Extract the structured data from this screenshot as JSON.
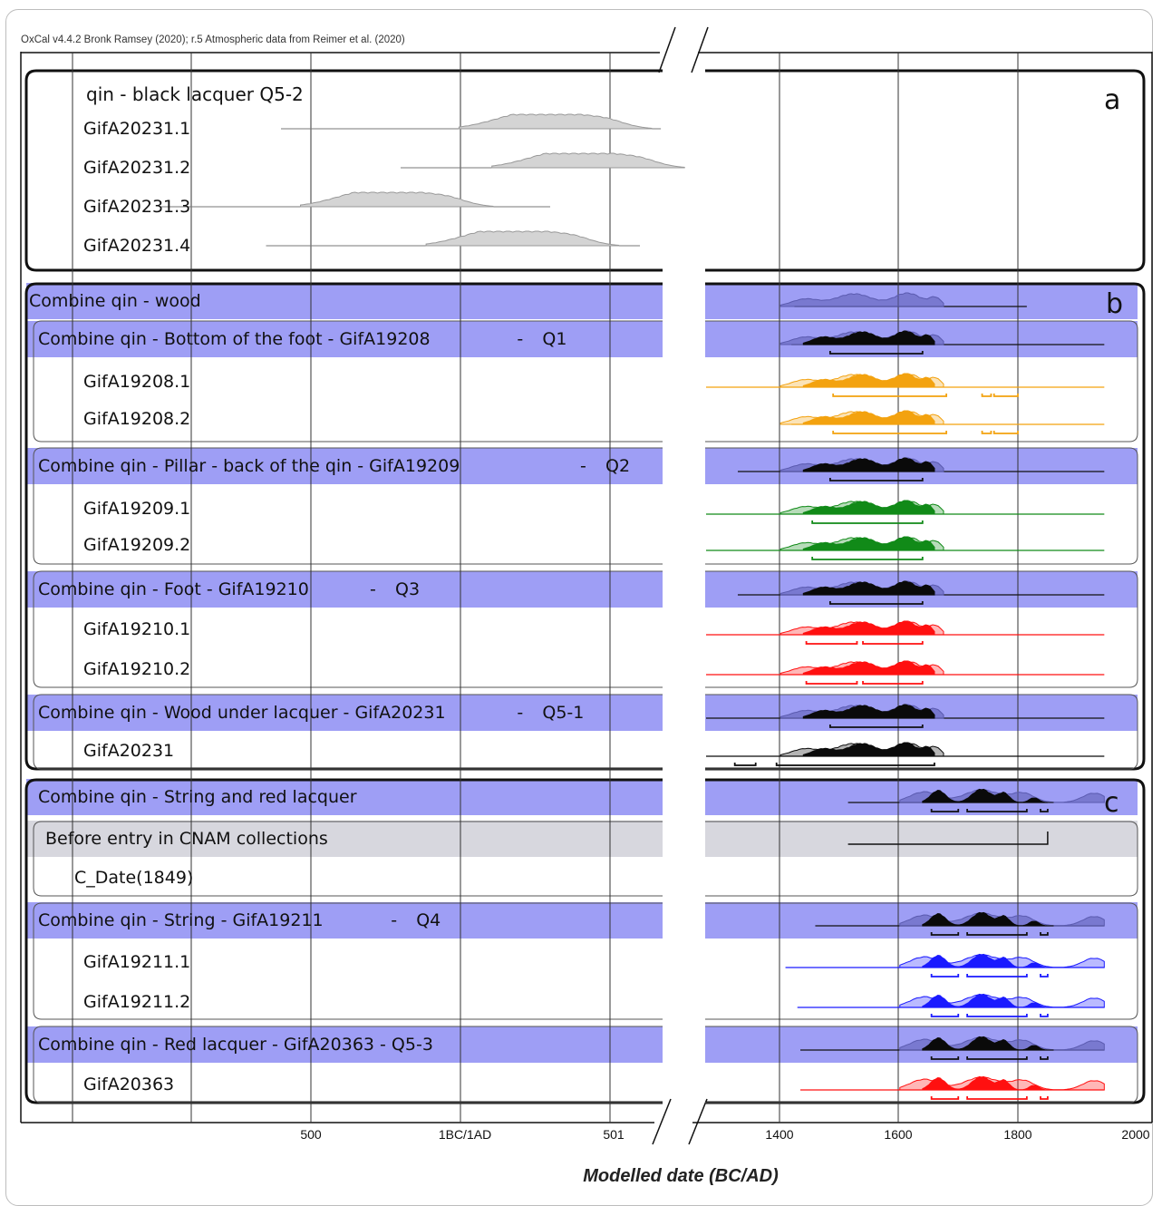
{
  "header": "OxCal v4.4.2 Bronk Ramsey (2020); r.5 Atmospheric data from Reimer et al. (2020)",
  "chart_data": {
    "type": "multiplot",
    "xlabel": "Modelled date (BC/AD)",
    "axis_break": true,
    "x_ticks_left": [
      "500",
      "1BC/1AD",
      "501"
    ],
    "x_ticks_right": [
      "1400",
      "1600",
      "1800",
      "2000"
    ],
    "colors": {
      "group": "#0a0a0a",
      "group_prior": "#5b5bb0",
      "q1": "#f3a20f",
      "q2": "#118a18",
      "q3": "#ff1010",
      "q4": "#1a1aff",
      "q5": "#0a0a0a",
      "q53": "#ff1010",
      "band_combine": "#9e9ef5",
      "band_before": "#d7d7de",
      "lacquer": "#999999"
    },
    "panels": [
      {
        "letter": "a",
        "rows": [
          {
            "label": "qin - black lacquer Q5-2",
            "kind": "title"
          },
          {
            "label": "GifA20231.1",
            "range": [
              -600,
              670
            ],
            "peak": [
              330,
              0.75
            ]
          },
          {
            "label": "GifA20231.2",
            "range": [
              -200,
              680
            ],
            "peak": [
              440,
              0.6
            ]
          },
          {
            "label": "GifA20231.3",
            "range": [
              -1000,
              300
            ],
            "peak": [
              -200,
              0.65
            ]
          },
          {
            "label": "GifA20231.4",
            "range": [
              -650,
              600
            ],
            "peak": [
              220,
              0.6
            ]
          }
        ]
      },
      {
        "letter": "b",
        "rows": [
          {
            "label": "Combine qin - wood",
            "kind": "combine",
            "range": [
              1425,
              1815
            ]
          },
          {
            "label": "Combine qin - Bottom of the foot - GifA19208",
            "code": "Q1",
            "kind": "combine",
            "range": [
              1420,
              1945
            ],
            "hpd": [
              [
                1485,
                1640
              ]
            ]
          },
          {
            "label": "GifA19208.1",
            "kind": "sample",
            "series": "Q1",
            "range": [
              1220,
              1945
            ],
            "hpd": [
              [
                1490,
                1680
              ],
              [
                1740,
                1755
              ],
              [
                1760,
                1800
              ]
            ]
          },
          {
            "label": "GifA19208.2",
            "kind": "sample",
            "series": "Q1",
            "range": [
              1420,
              1945
            ],
            "hpd": [
              [
                1490,
                1680
              ],
              [
                1740,
                1755
              ],
              [
                1760,
                1800
              ]
            ]
          },
          {
            "label": "Combine qin - Pillar - back of the qin - GifA19209",
            "code": "Q2",
            "kind": "combine",
            "range": [
              1330,
              1945
            ],
            "hpd": [
              [
                1485,
                1640
              ]
            ]
          },
          {
            "label": "GifA19209.1",
            "kind": "sample",
            "series": "Q2",
            "range": [
              1190,
              1945
            ],
            "hpd": [
              [
                1455,
                1640
              ]
            ]
          },
          {
            "label": "GifA19209.2",
            "kind": "sample",
            "series": "Q2",
            "range": [
              1210,
              1945
            ],
            "hpd": [
              [
                1455,
                1640
              ]
            ]
          },
          {
            "label": "Combine qin - Foot - GifA19210",
            "code": "Q3",
            "kind": "combine",
            "range": [
              1330,
              1945
            ],
            "hpd": [
              [
                1485,
                1640
              ]
            ]
          },
          {
            "label": "GifA19210.1",
            "kind": "sample",
            "series": "Q3",
            "range": [
              1180,
              1945
            ],
            "hpd": [
              [
                1445,
                1530
              ],
              [
                1540,
                1640
              ]
            ]
          },
          {
            "label": "GifA19210.2",
            "kind": "sample",
            "series": "Q3",
            "range": [
              1180,
              1945
            ],
            "hpd": [
              [
                1445,
                1530
              ],
              [
                1540,
                1640
              ]
            ]
          },
          {
            "label": "Combine qin - Wood under lacquer - GifA20231",
            "code": "Q5-1",
            "kind": "combine",
            "range": [
              1180,
              1945
            ],
            "hpd": [
              [
                1485,
                1640
              ]
            ]
          },
          {
            "label": "GifA20231",
            "kind": "sample",
            "series": "Q5",
            "range": [
              1180,
              1945
            ],
            "hpd": [
              [
                1325,
                1360
              ],
              [
                1395,
                1660
              ]
            ]
          }
        ]
      },
      {
        "letter": "c",
        "rows": [
          {
            "label": "Combine qin - String and red lacquer",
            "kind": "combine",
            "range": [
              1515,
              1850
            ],
            "hpd": [
              [
                1655,
                1700
              ],
              [
                1715,
                1815
              ],
              [
                1838,
                1850
              ]
            ]
          },
          {
            "label": "Before entry in CNAM collections",
            "kind": "before",
            "range": [
              1515,
              1850
            ]
          },
          {
            "label": "C_Date(1849)",
            "kind": "plain"
          },
          {
            "label": "Combine qin - String - GifA19211",
            "code": "Q4",
            "kind": "combine",
            "range": [
              1460,
              1945
            ],
            "hpd": [
              [
                1655,
                1700
              ],
              [
                1715,
                1815
              ],
              [
                1838,
                1850
              ]
            ]
          },
          {
            "label": "GifA19211.1",
            "kind": "sample",
            "series": "Q4",
            "range": [
              1410,
              1945
            ],
            "hpd": [
              [
                1655,
                1700
              ],
              [
                1715,
                1815
              ],
              [
                1838,
                1850
              ]
            ]
          },
          {
            "label": "GifA19211.2",
            "kind": "sample",
            "series": "Q4",
            "range": [
              1430,
              1945
            ],
            "hpd": [
              [
                1655,
                1700
              ],
              [
                1715,
                1815
              ],
              [
                1838,
                1850
              ]
            ]
          },
          {
            "label": "Combine qin - Red lacquer - GifA20363 - Q5-3",
            "kind": "combine",
            "range": [
              1435,
              1945
            ],
            "hpd": [
              [
                1655,
                1700
              ],
              [
                1715,
                1815
              ],
              [
                1838,
                1850
              ]
            ]
          },
          {
            "label": "GifA20363",
            "kind": "sample",
            "series": "Q53",
            "range": [
              1435,
              1945
            ],
            "hpd": [
              [
                1655,
                1700
              ],
              [
                1715,
                1815
              ],
              [
                1838,
                1850
              ]
            ]
          }
        ]
      }
    ]
  }
}
